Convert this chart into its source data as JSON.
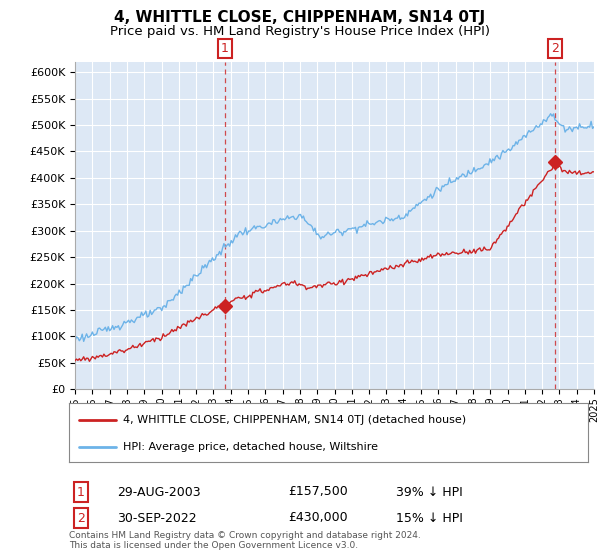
{
  "title": "4, WHITTLE CLOSE, CHIPPENHAM, SN14 0TJ",
  "subtitle": "Price paid vs. HM Land Registry's House Price Index (HPI)",
  "title_fontsize": 11,
  "subtitle_fontsize": 9.5,
  "ylabel_ticks": [
    "£0",
    "£50K",
    "£100K",
    "£150K",
    "£200K",
    "£250K",
    "£300K",
    "£350K",
    "£400K",
    "£450K",
    "£500K",
    "£550K",
    "£600K"
  ],
  "ytick_values": [
    0,
    50000,
    100000,
    150000,
    200000,
    250000,
    300000,
    350000,
    400000,
    450000,
    500000,
    550000,
    600000
  ],
  "ylim": [
    0,
    620000
  ],
  "background_color": "#ffffff",
  "plot_bg_color": "#dde8f5",
  "grid_color": "#ffffff",
  "hpi_line_color": "#6db3e8",
  "price_line_color": "#cc2222",
  "marker1_x": 2003.66,
  "marker1_y": 157500,
  "marker2_x": 2022.75,
  "marker2_y": 430000,
  "legend_label1": "4, WHITTLE CLOSE, CHIPPENHAM, SN14 0TJ (detached house)",
  "legend_label2": "HPI: Average price, detached house, Wiltshire",
  "table_row1": [
    "1",
    "29-AUG-2003",
    "£157,500",
    "39% ↓ HPI"
  ],
  "table_row2": [
    "2",
    "30-SEP-2022",
    "£430,000",
    "15% ↓ HPI"
  ],
  "footnote": "Contains HM Land Registry data © Crown copyright and database right 2024.\nThis data is licensed under the Open Government Licence v3.0.",
  "xmin": 1995,
  "xmax": 2025
}
